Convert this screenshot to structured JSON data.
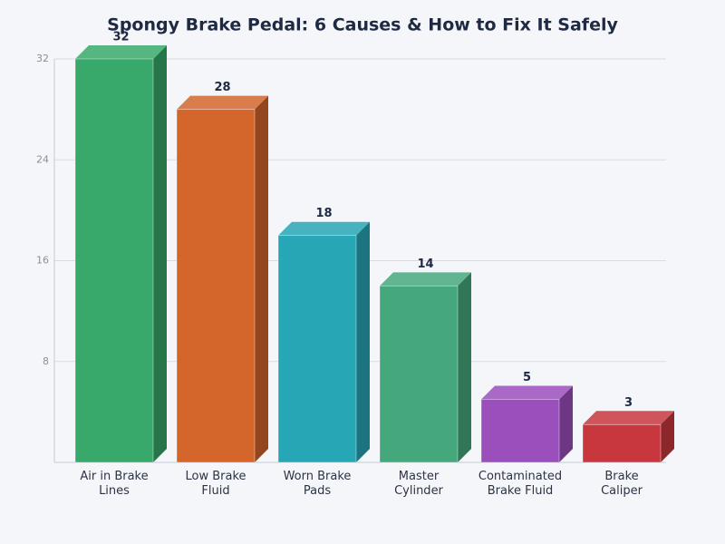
{
  "chart_data": {
    "type": "bar3d",
    "title": "Spongy Brake Pedal: 6 Causes & How to Fix It Safely",
    "categories": [
      "Air in Brake Lines",
      "Low Brake Fluid",
      "Worn Brake Pads",
      "Master Cylinder",
      "Contaminated Brake Fluid",
      "Brake Caliper"
    ],
    "values": [
      32,
      28,
      18,
      14,
      5,
      3
    ],
    "colors": [
      "#38a96a",
      "#d4662c",
      "#27a6b5",
      "#45a87c",
      "#9b4fbd",
      "#c8373d"
    ],
    "ylim": [
      0,
      32
    ],
    "yticks": [
      8,
      16,
      24,
      32
    ],
    "grid": true
  }
}
